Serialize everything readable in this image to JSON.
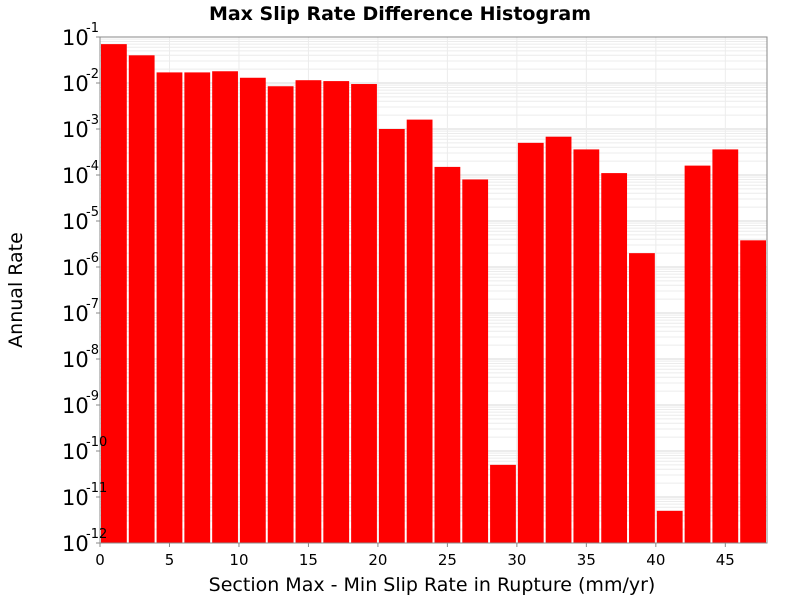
{
  "chart_data": {
    "type": "bar",
    "title": "Max Slip Rate Difference Histogram",
    "xlabel": "Section Max - Min Slip Rate in Rupture (mm/yr)",
    "ylabel": "Annual Rate",
    "y_scale": "log",
    "ylim": [
      1e-12,
      0.1
    ],
    "xlim": [
      0,
      48
    ],
    "bin_width": 2,
    "x_ticks": [
      0,
      5,
      10,
      15,
      20,
      25,
      30,
      35,
      40,
      45
    ],
    "y_tick_base": "10",
    "y_tick_exponents": [
      "-1",
      "-2",
      "-3",
      "-4",
      "-5",
      "-6",
      "-7",
      "-8",
      "-9",
      "-10",
      "-11",
      "-12"
    ],
    "bar_color": "#ff0000",
    "grid": true,
    "legend": "none",
    "bins": [
      {
        "x": 1,
        "y": 0.07
      },
      {
        "x": 3,
        "y": 0.04
      },
      {
        "x": 5,
        "y": 0.017
      },
      {
        "x": 7,
        "y": 0.017
      },
      {
        "x": 9,
        "y": 0.018
      },
      {
        "x": 11,
        "y": 0.013
      },
      {
        "x": 13,
        "y": 0.0085
      },
      {
        "x": 15,
        "y": 0.0115
      },
      {
        "x": 17,
        "y": 0.011
      },
      {
        "x": 19,
        "y": 0.0095
      },
      {
        "x": 21,
        "y": 0.001
      },
      {
        "x": 23,
        "y": 0.0016
      },
      {
        "x": 25,
        "y": 0.00015
      },
      {
        "x": 27,
        "y": 8e-05
      },
      {
        "x": 29,
        "y": 5e-11
      },
      {
        "x": 31,
        "y": 0.0005
      },
      {
        "x": 33,
        "y": 0.00068
      },
      {
        "x": 35,
        "y": 0.00036
      },
      {
        "x": 37,
        "y": 0.00011
      },
      {
        "x": 39,
        "y": 2e-06
      },
      {
        "x": 41,
        "y": 5e-12
      },
      {
        "x": 43,
        "y": 0.00016
      },
      {
        "x": 45,
        "y": 0.00036
      },
      {
        "x": 47,
        "y": 3.8e-06
      }
    ]
  }
}
